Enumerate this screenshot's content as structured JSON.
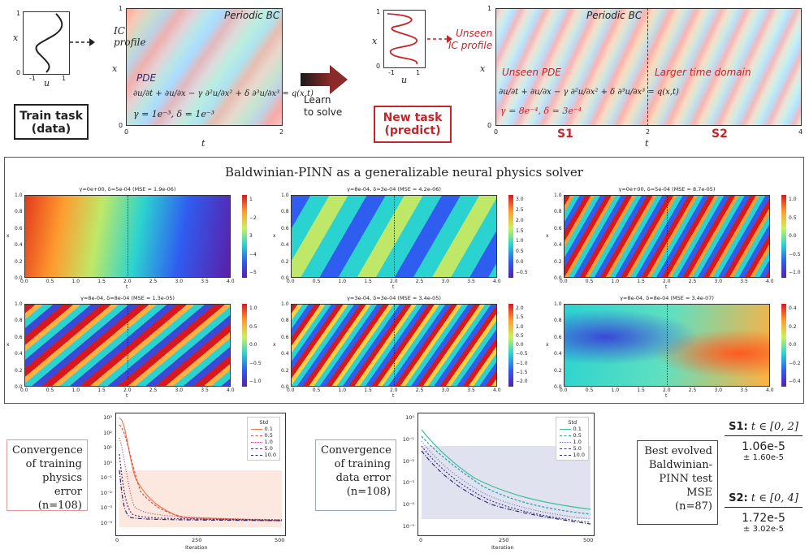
{
  "top": {
    "small_plot_left": {
      "ylabel": "x",
      "xlabel": "u",
      "ytick0": "0",
      "ytick1": "1",
      "xtick_neg": "-1",
      "xtick_pos": "1"
    },
    "train_task": {
      "line1": "Train task",
      "line2": "(data)"
    },
    "left_heatmap": {
      "ic_label_1": "IC",
      "ic_label_2": "profile",
      "periodic_bc": "Periodic BC",
      "pde_label": "PDE",
      "equation": "∂u/∂t + ∂u/∂x − γ ∂²u/∂x² + δ ∂³u/∂x³ = q(x,t)",
      "params": "γ = 1e⁻³, δ = 1e⁻³",
      "xlabel": "t",
      "ylabel": "x",
      "xtick0": "0",
      "xtick2": "2",
      "ytick0": "0",
      "ytick1": "1"
    },
    "arrow_text_1": "Learn",
    "arrow_text_2": "to solve",
    "small_plot_right": {
      "ylabel": "x",
      "xlabel": "u",
      "ytick0": "0",
      "ytick1": "1",
      "xtick_neg": "-1",
      "xtick_pos": "1"
    },
    "new_task": {
      "line1": "New task",
      "line2": "(predict)"
    },
    "right_heatmap": {
      "unseen_ic_1": "Unseen",
      "unseen_ic_2": "IC profile",
      "periodic_bc": "Periodic BC",
      "unseen_pde": "Unseen PDE",
      "larger_time": "Larger time domain",
      "equation": "∂u/∂t + ∂u/∂x − γ ∂²u/∂x² + δ ∂³u/∂x³ = q(x,t)",
      "params": "γ = 8e⁻⁴, δ = 3e⁻⁴",
      "s1": "S1",
      "s2": "S2",
      "xlabel": "t",
      "ylabel": "x",
      "xtick0": "0",
      "xtick2": "2",
      "xtick4": "4",
      "ytick0": "0",
      "ytick1": "1"
    }
  },
  "middle": {
    "title": "Baldwinian-PINN as a generalizable neural physics solver",
    "panels": [
      {
        "title": "γ=0e+00,  δ=5e-04   (MSE = 1.9e-06)",
        "cbar": [
          "1",
          "−2",
          "3",
          "−4",
          "−5"
        ]
      },
      {
        "title": "γ=8e-04,  δ=3e-04   (MSE = 4.2e-06)",
        "cbar": [
          "3.0",
          "2.5",
          "2.0",
          "1.5",
          "1.0",
          "0.5",
          "0.0",
          "−0.5"
        ]
      },
      {
        "title": "γ=0e+00,  δ=5e-04   (MSE = 8.7e-05)",
        "cbar": [
          "1.0",
          "0.5",
          "0.0",
          "−0.5",
          "−1.0"
        ]
      },
      {
        "title": "γ=8e-04,  δ=8e-04   (MSE = 1.3e-05)",
        "cbar": [
          "1.0",
          "0.5",
          "0.0",
          "−0.5",
          "−1.0"
        ]
      },
      {
        "title": "γ=3e-04,  δ=3e-04   (MSE = 3.4e-05)",
        "cbar": [
          "2.0",
          "1.5",
          "1.0",
          "0.5",
          "0.0",
          "−0.5",
          "−1.0",
          "−1.5",
          "−2.0"
        ]
      },
      {
        "title": "γ=8e-04,  δ=8e-04   (MSE = 3.4e-07)",
        "cbar": [
          "0.4",
          "0.2",
          "0.0",
          "−0.2",
          "−0.4"
        ]
      }
    ],
    "axis_x": "t",
    "axis_y": "x",
    "xticks": [
      "0.0",
      "0.5",
      "1.0",
      "1.5",
      "2.0",
      "2.5",
      "3.0",
      "3.5",
      "4.0"
    ],
    "yticks": [
      "1.0",
      "0.8",
      "0.6",
      "0.4",
      "0.2",
      "0.0"
    ]
  },
  "bottom": {
    "physics_label": [
      "Convergence",
      "of training",
      "physics error",
      "(n=108)"
    ],
    "data_label": [
      "Convergence",
      "of training",
      "data error",
      "(n=108)"
    ],
    "physics_chart": {
      "legend_title": "Std",
      "legend": [
        "0.1",
        "0.5",
        "1.0",
        "5.0",
        "10.0"
      ],
      "yticks": [
        "10³",
        "10²",
        "10¹",
        "10⁰",
        "10⁻¹",
        "10⁻²",
        "10⁻³",
        "10⁻⁴"
      ],
      "xticks": [
        "0",
        "250",
        "500"
      ],
      "xlabel": "Iteration"
    },
    "data_chart": {
      "legend_title": "Std",
      "legend": [
        "0.1",
        "0.5",
        "1.0",
        "5.0",
        "10.0"
      ],
      "yticks": [
        "10⁰",
        "10⁻¹",
        "10⁻²",
        "10⁻³",
        "10⁻⁴",
        "10⁻⁵"
      ],
      "xticks": [
        "0",
        "250",
        "500"
      ],
      "xlabel": "Iteration"
    },
    "best_label": [
      "Best evolved",
      "Baldwinian-",
      "PINN test",
      "MSE",
      "(n=87)"
    ],
    "s1_header_bold": "S1:",
    "s1_header_rest": " t ∈ [0, 2]",
    "s1_value": "1.06e-5",
    "s1_std": "± 1.60e-5",
    "s2_header_bold": "S2:",
    "s2_header_rest": " t ∈ [0, 4]",
    "s2_value": "1.72e-5",
    "s2_std": "± 3.02e-5"
  },
  "colors": {
    "accent_red": "#c0262b",
    "orange": "#f07b4e",
    "teal": "#3cbf9c",
    "navy": "#2b2d6b"
  }
}
